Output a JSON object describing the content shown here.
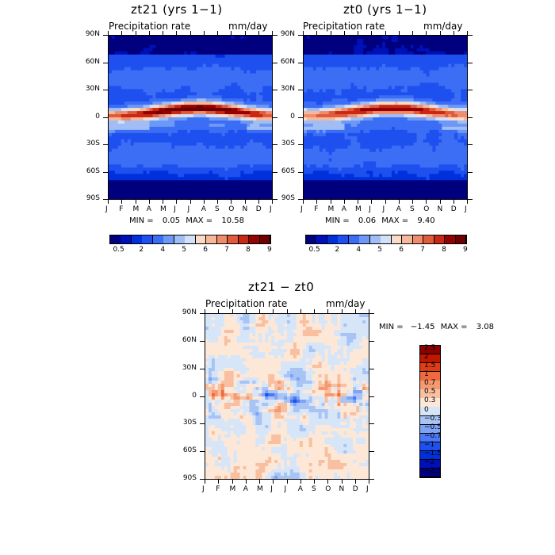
{
  "panels": [
    {
      "id": "left",
      "title": "zt21 (yrs 1−1)",
      "subtitle_left": "Precipitation rate",
      "subtitle_right": "mm/day",
      "min_label": "MIN =",
      "min_value": "0.05",
      "max_label": "MAX =",
      "max_value": "10.58"
    },
    {
      "id": "right",
      "title": "zt0 (yrs 1−1)",
      "subtitle_left": "Precipitation rate",
      "subtitle_right": "mm/day",
      "min_label": "MIN =",
      "min_value": "0.06",
      "max_label": "MAX =",
      "max_value": "9.40"
    },
    {
      "id": "diff",
      "title": "zt21 − zt0",
      "subtitle_left": "Precipitation rate",
      "subtitle_right": "mm/day",
      "min_label": "MIN =",
      "min_value": "−1.45",
      "max_label": "MAX =",
      "max_value": "3.08"
    }
  ],
  "chart_data": [
    {
      "type": "heatmap",
      "title": "zt21 (yrs 1−1)",
      "subtitle": "Precipitation rate",
      "units": "mm/day",
      "x_ticks": [
        "J",
        "F",
        "M",
        "A",
        "M",
        "J",
        "J",
        "A",
        "S",
        "O",
        "N",
        "D",
        "J"
      ],
      "y_ticks": [
        "90N",
        "60N",
        "30N",
        "0",
        "30S",
        "60S",
        "90S"
      ],
      "colorbar_levels": [
        "0.5",
        "2",
        "4",
        "5",
        "6",
        "7",
        "8",
        "9"
      ],
      "min": 0.05,
      "max": 10.58
    },
    {
      "type": "heatmap",
      "title": "zt0 (yrs 1−1)",
      "subtitle": "Precipitation rate",
      "units": "mm/day",
      "x_ticks": [
        "J",
        "F",
        "M",
        "A",
        "M",
        "J",
        "J",
        "A",
        "S",
        "O",
        "N",
        "D",
        "J"
      ],
      "y_ticks": [
        "90N",
        "60N",
        "30N",
        "0",
        "30S",
        "60S",
        "90S"
      ],
      "colorbar_levels": [
        "0.5",
        "2",
        "4",
        "5",
        "6",
        "7",
        "8",
        "9"
      ],
      "min": 0.06,
      "max": 9.4
    },
    {
      "type": "heatmap",
      "title": "zt21 − zt0",
      "subtitle": "Precipitation rate",
      "units": "mm/day",
      "x_ticks": [
        "J",
        "F",
        "M",
        "A",
        "M",
        "J",
        "J",
        "A",
        "S",
        "O",
        "N",
        "D",
        "J"
      ],
      "y_ticks": [
        "90N",
        "60N",
        "30N",
        "0",
        "30S",
        "60S",
        "90S"
      ],
      "colorbar_levels": [
        "2.5",
        "2",
        "1.5",
        "1",
        "0.7",
        "0.5",
        "0.3",
        "0",
        "−0.3",
        "−0.5",
        "−0.7",
        "−1",
        "−1.5",
        "−2",
        "−2.5"
      ],
      "min": -1.45,
      "max": 3.08
    }
  ],
  "colors": {
    "seq": [
      "#00007f",
      "#0010b8",
      "#0030dc",
      "#1e50f0",
      "#3c6ef5",
      "#6e98f5",
      "#a0bef5",
      "#d2e1f8",
      "#f8dcc8",
      "#f5b89a",
      "#f08c6e",
      "#e05a3c",
      "#c82814",
      "#960000",
      "#6e0000"
    ],
    "div": [
      "#00007f",
      "#0010b8",
      "#0030dc",
      "#1e50f0",
      "#4a78f5",
      "#7ea2f5",
      "#a8c4f5",
      "#d6e6f8",
      "#fde8d8",
      "#f8c0a0",
      "#f59a70",
      "#f06a40",
      "#e03c14",
      "#c01800",
      "#8c0000"
    ]
  }
}
